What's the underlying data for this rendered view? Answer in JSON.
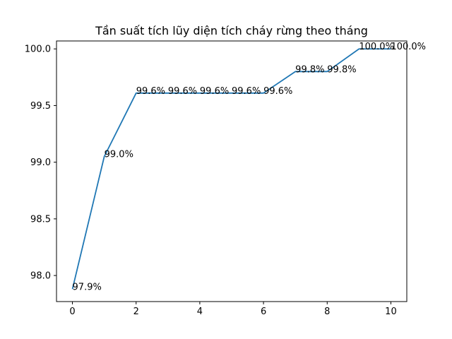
{
  "chart_data": {
    "type": "line",
    "title": "Tần suất tích lũy diện tích cháy rừng theo tháng",
    "xlabel": "",
    "ylabel": "",
    "x": [
      0,
      1,
      2,
      3,
      4,
      5,
      6,
      7,
      8,
      9,
      10
    ],
    "series": [
      {
        "values": [
          97.88,
          99.05,
          99.61,
          99.61,
          99.61,
          99.61,
          99.61,
          99.8,
          99.8,
          100.0,
          100.0
        ],
        "labels": [
          "97.9%",
          "99.0%",
          "99.6%",
          "99.6%",
          "99.6%",
          "99.6%",
          "99.6%",
          "99.8%",
          "99.8%",
          "100.0%",
          "100.0%"
        ],
        "color": "#1f77b4"
      }
    ],
    "xlim": [
      -0.5,
      10.5
    ],
    "ylim": [
      97.77,
      100.07
    ],
    "xticks": [
      0,
      2,
      4,
      6,
      8,
      10
    ],
    "yticks": [
      98.0,
      98.5,
      99.0,
      99.5,
      100.0
    ],
    "xtick_labels": [
      "0",
      "2",
      "4",
      "6",
      "8",
      "10"
    ],
    "ytick_labels": [
      "98.0",
      "98.5",
      "99.0",
      "99.5",
      "100.0"
    ],
    "grid": false,
    "legend": "none"
  }
}
